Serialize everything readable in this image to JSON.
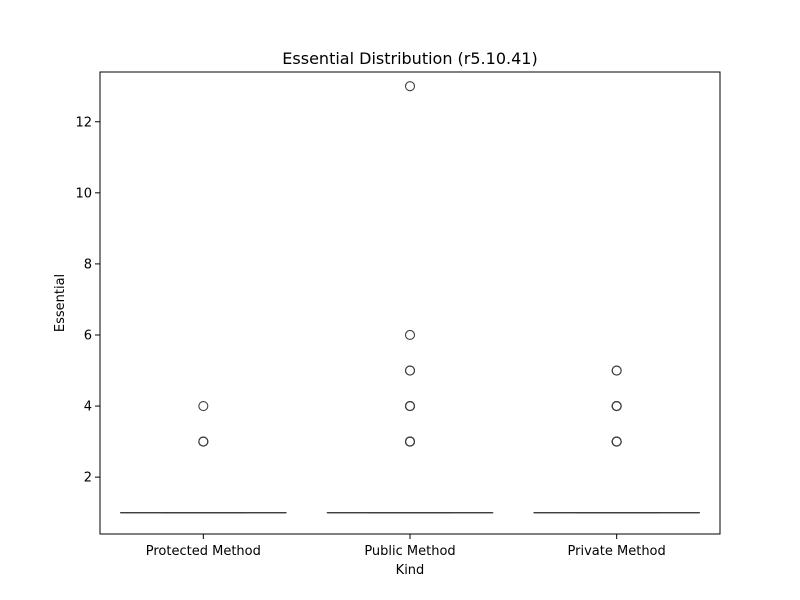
{
  "chart_data": {
    "type": "box",
    "title": "Essential Distribution (r5.10.41)",
    "xlabel": "Kind",
    "ylabel": "Essential",
    "categories": [
      "Protected Method",
      "Public Method",
      "Private Method"
    ],
    "ylim": [
      0.4,
      13.4
    ],
    "yticks": [
      2,
      4,
      6,
      8,
      10,
      12
    ],
    "grid": false,
    "boxes": [
      {
        "category": "Protected Method",
        "q1": 1,
        "median": 1,
        "q3": 1,
        "whisker_low": 1,
        "whisker_high": 1,
        "outliers": [
          3,
          3,
          3,
          4
        ]
      },
      {
        "category": "Public Method",
        "q1": 1,
        "median": 1,
        "q3": 1,
        "whisker_low": 1,
        "whisker_high": 1,
        "outliers": [
          3,
          3,
          3,
          3,
          4,
          4,
          4,
          5,
          5,
          6,
          13
        ]
      },
      {
        "category": "Private Method",
        "q1": 1,
        "median": 1,
        "q3": 1,
        "whisker_low": 1,
        "whisker_high": 1,
        "outliers": [
          3,
          3,
          3,
          3,
          4,
          4,
          4,
          4,
          5,
          5
        ]
      }
    ],
    "colors": {
      "box_edge": "#3f3f3f",
      "outlier_edge": "#3f3f3f",
      "axis": "#000000"
    }
  }
}
